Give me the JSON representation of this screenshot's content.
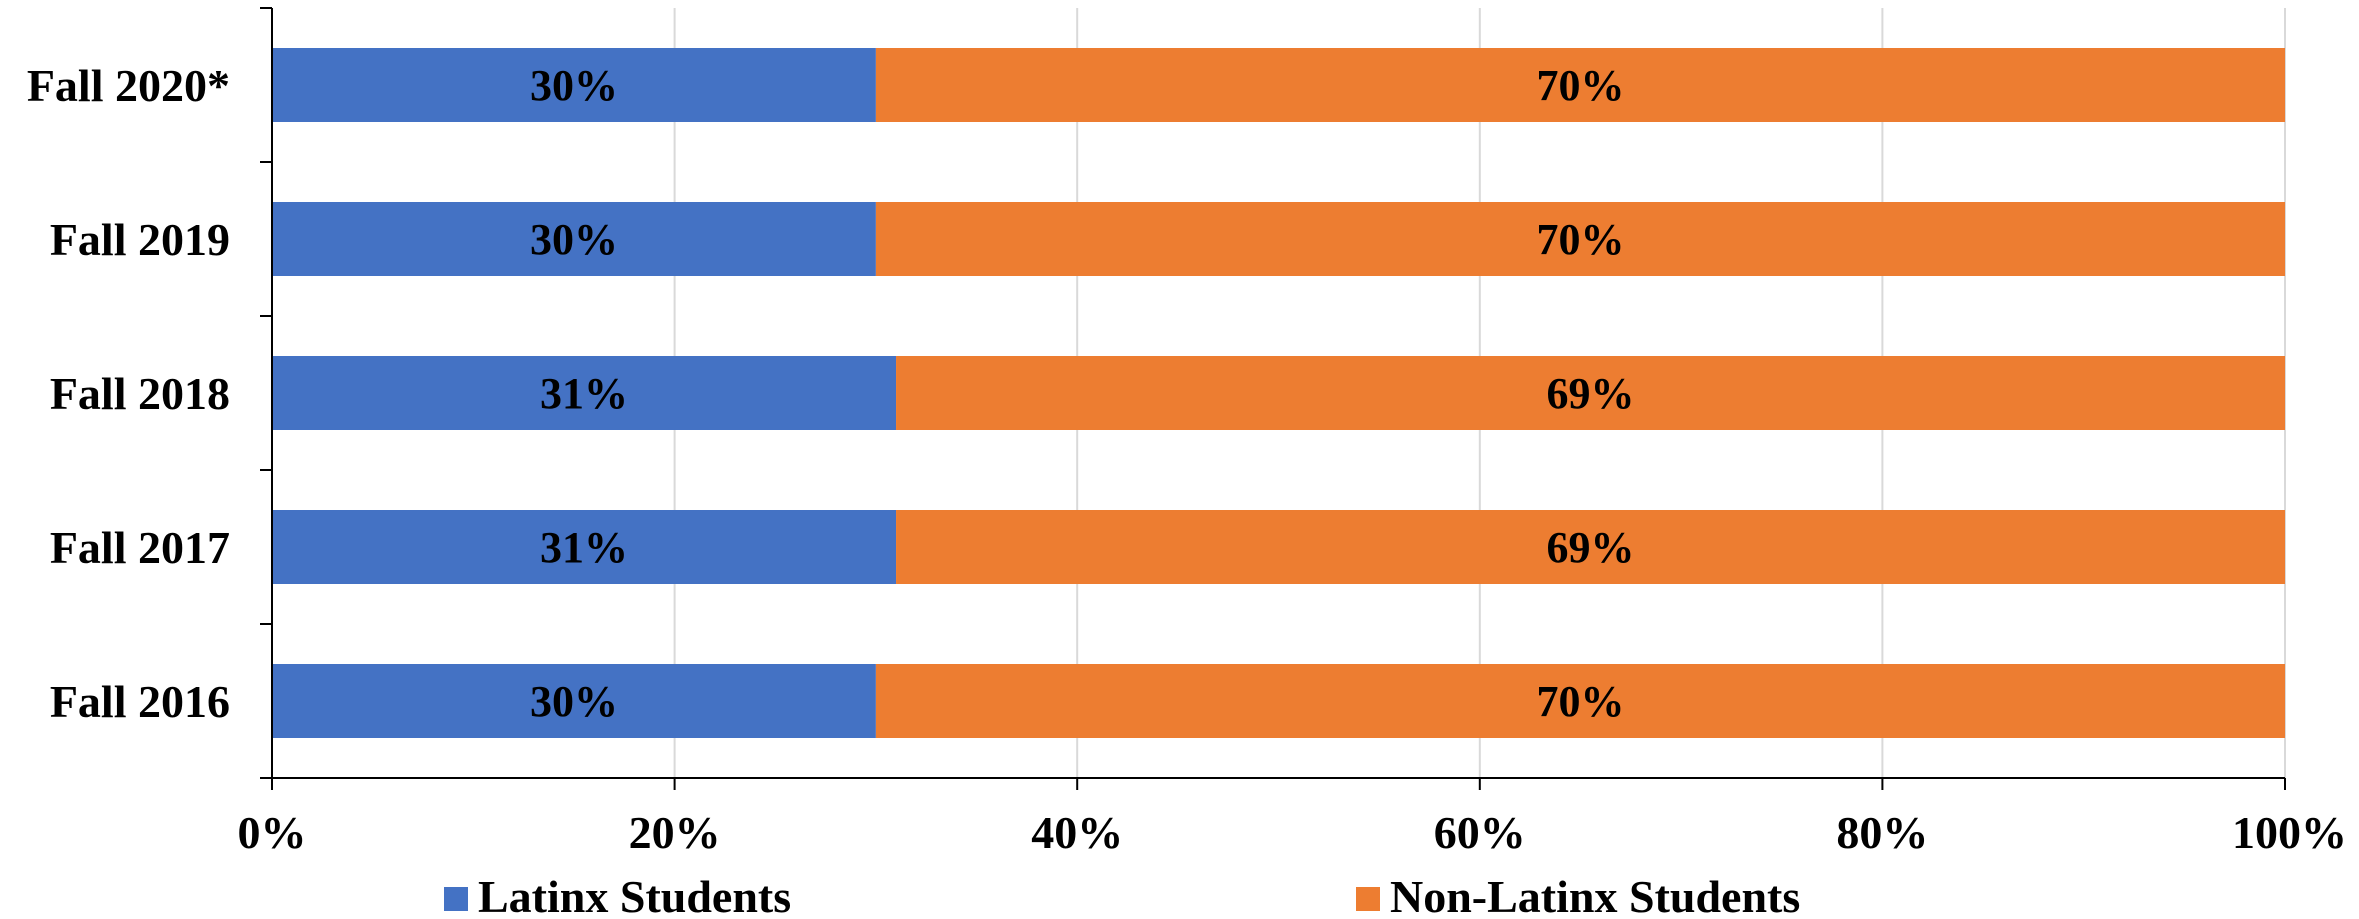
{
  "chart_data": {
    "type": "bar",
    "orientation": "horizontal",
    "stacked": "percent",
    "categories": [
      "Fall 2020*",
      "Fall 2019",
      "Fall 2018",
      "Fall 2017",
      "Fall 2016"
    ],
    "series": [
      {
        "name": "Latinx Students",
        "color": "#4472c4",
        "values": [
          30,
          30,
          31,
          31,
          30
        ],
        "labels": [
          "30%",
          "30%",
          "31%",
          "31%",
          "30%"
        ]
      },
      {
        "name": "Non-Latinx Students",
        "color": "#ed7d31",
        "values": [
          70,
          70,
          69,
          69,
          70
        ],
        "labels": [
          "70%",
          "70%",
          "69%",
          "69%",
          "70%"
        ]
      }
    ],
    "x_ticks": [
      "0%",
      "20%",
      "40%",
      "60%",
      "80%",
      "100%"
    ],
    "xlim": [
      0,
      100
    ],
    "grid": true,
    "legend_position": "bottom"
  }
}
